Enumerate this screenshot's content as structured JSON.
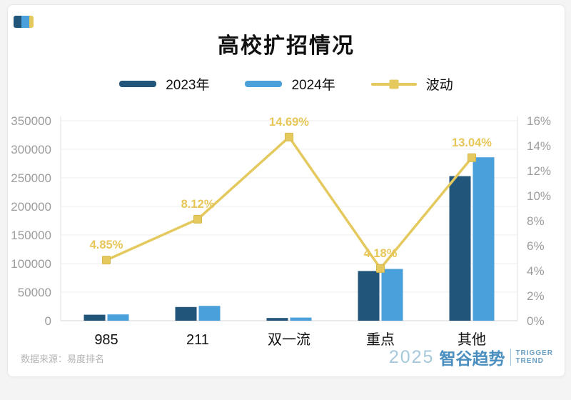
{
  "header": {
    "title": "高校扩招情况"
  },
  "legend": [
    {
      "label": "2023年",
      "type": "bar",
      "color": "#21567a"
    },
    {
      "label": "2024年",
      "type": "bar",
      "color": "#4aa0da"
    },
    {
      "label": "波动",
      "type": "line",
      "color": "#e4c95e"
    }
  ],
  "theme": {
    "dark_blue": "#21567a",
    "light_blue": "#4aa0da",
    "yellow": "#e4c95e",
    "yellow_label": "#e7c658",
    "axis_text": "#9c9c9c",
    "x_text": "#111111",
    "grid": "#eeeeee",
    "axis_line": "#e2e2e2",
    "zero_line": "#d6d6d6"
  },
  "chart_data": {
    "type": "combo-bar-line",
    "categories": [
      "985",
      "211",
      "双一流",
      "重点",
      "其他"
    ],
    "series": [
      {
        "name": "2023年",
        "type": "bar",
        "axis": "left",
        "color": "#21567a",
        "values": [
          10500,
          24000,
          4800,
          87000,
          253000
        ]
      },
      {
        "name": "2024年",
        "type": "bar",
        "axis": "left",
        "color": "#4aa0da",
        "values": [
          11000,
          25950,
          5500,
          90600,
          286000
        ]
      },
      {
        "name": "波动",
        "type": "line",
        "axis": "right",
        "color": "#e4c95e",
        "values": [
          4.85,
          8.12,
          14.69,
          4.18,
          13.04
        ],
        "labels": [
          "4.85%",
          "8.12%",
          "14.69%",
          "4.18%",
          "13.04%"
        ]
      }
    ],
    "left_axis": {
      "min": 0,
      "max": 350000,
      "ticks": [
        "0",
        "50000",
        "100000",
        "150000",
        "200000",
        "250000",
        "300000",
        "350000"
      ]
    },
    "right_axis": {
      "min": 0,
      "max": 16,
      "ticks": [
        "0%",
        "2%",
        "4%",
        "6%",
        "8%",
        "10%",
        "12%",
        "14%",
        "16%"
      ]
    },
    "grid": true,
    "legend_position": "top"
  },
  "footer": {
    "source": "数据来源：易度排名",
    "logo": {
      "year": "2025",
      "brand": "智谷趋势",
      "tagline_line1": "TRIGGER",
      "tagline_line2": "TREND"
    }
  }
}
